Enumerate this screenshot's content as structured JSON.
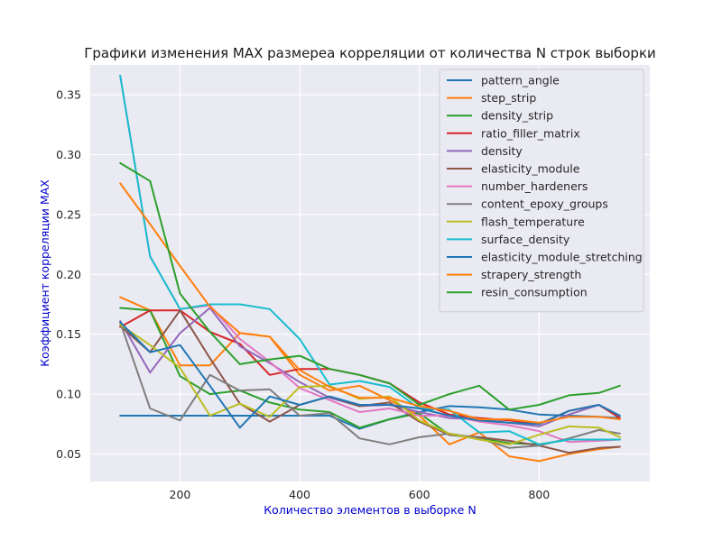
{
  "chart_data": {
    "type": "line",
    "title": "Графики изменения MAX размереа корреляции от количества  N строк выборки",
    "xlabel": "Количество элементов в выборке N",
    "ylabel": "Коэффициент корреляции MAX",
    "label_color": "#0000cc",
    "xlim": [
      50,
      985
    ],
    "ylim": [
      0.027,
      0.375
    ],
    "xticks": [
      200,
      400,
      600,
      800
    ],
    "yticks": [
      0.05,
      0.1,
      0.15,
      0.2,
      0.25,
      0.3,
      0.35
    ],
    "ytick_labels": [
      "0.05",
      "0.10",
      "0.15",
      "0.20",
      "0.25",
      "0.30",
      "0.35"
    ],
    "grid": true,
    "background": "#eaeaf2",
    "legend_position": "top-right",
    "x": [
      100,
      150,
      200,
      250,
      300,
      350,
      400,
      450,
      500,
      550,
      600,
      650,
      700,
      750,
      800,
      850,
      900,
      935
    ],
    "series": [
      {
        "name": "pattern_angle",
        "color": "#1f77b4",
        "values": [
          0.082,
          0.082,
          0.082,
          0.082,
          0.082,
          0.082,
          0.082,
          0.082,
          0.071,
          0.079,
          0.085,
          0.09,
          0.089,
          0.087,
          0.083,
          0.082,
          0.081,
          0.08
        ]
      },
      {
        "name": "step_strip",
        "color": "#ff7f0e",
        "values": [
          0.181,
          0.17,
          0.124,
          0.124,
          0.151,
          0.148,
          0.116,
          0.103,
          0.107,
          0.095,
          0.082,
          0.058,
          0.068,
          0.048,
          0.044,
          0.05,
          0.054,
          0.056
        ]
      },
      {
        "name": "density_strip",
        "color": "#2ca02c",
        "values": [
          0.172,
          0.17,
          0.115,
          0.1,
          0.103,
          0.093,
          0.087,
          0.085,
          0.072,
          0.079,
          0.084,
          0.066,
          0.063,
          0.059,
          0.058,
          0.062,
          0.062,
          0.062
        ]
      },
      {
        "name": "ratio_filler_matrix",
        "color": "#d62728",
        "values": [
          0.156,
          0.17,
          0.17,
          0.152,
          0.142,
          0.116,
          0.121,
          0.121,
          0.116,
          0.109,
          0.093,
          0.083,
          0.08,
          0.078,
          0.075,
          0.086,
          0.091,
          0.08
        ]
      },
      {
        "name": "density",
        "color": "#9467bd",
        "values": [
          0.161,
          0.118,
          0.151,
          0.172,
          0.14,
          0.126,
          0.11,
          0.097,
          0.09,
          0.091,
          0.085,
          0.08,
          0.079,
          0.076,
          0.073,
          0.083,
          0.091,
          0.082
        ]
      },
      {
        "name": "elasticity_module",
        "color": "#8c564b",
        "values": [
          0.157,
          0.135,
          0.17,
          0.13,
          0.092,
          0.077,
          0.091,
          0.098,
          0.09,
          0.093,
          0.077,
          0.066,
          0.064,
          0.061,
          0.057,
          0.051,
          0.055,
          0.056
        ]
      },
      {
        "name": "number_hardeners",
        "color": "#e377c2",
        "values": [
          0.366,
          0.215,
          0.171,
          0.174,
          0.146,
          0.127,
          0.105,
          0.095,
          0.085,
          0.088,
          0.082,
          0.082,
          0.077,
          0.074,
          0.069,
          0.06,
          0.061,
          0.062
        ]
      },
      {
        "name": "content_epoxy_groups",
        "color": "#7f7f7f",
        "values": [
          0.16,
          0.088,
          0.078,
          0.116,
          0.103,
          0.104,
          0.082,
          0.084,
          0.063,
          0.058,
          0.064,
          0.067,
          0.063,
          0.055,
          0.057,
          0.063,
          0.07,
          0.067
        ]
      },
      {
        "name": "flash_temperature",
        "color": "#bcbd22",
        "values": [
          0.158,
          0.141,
          0.122,
          0.082,
          0.092,
          0.081,
          0.106,
          0.107,
          0.096,
          0.098,
          0.078,
          0.067,
          0.062,
          0.058,
          0.066,
          0.073,
          0.072,
          0.064
        ]
      },
      {
        "name": "surface_density",
        "color": "#17becf",
        "values": [
          0.366,
          0.215,
          0.171,
          0.175,
          0.175,
          0.171,
          0.146,
          0.108,
          0.111,
          0.106,
          0.088,
          0.087,
          0.068,
          0.069,
          0.058,
          0.062,
          0.062,
          0.062
        ]
      },
      {
        "name": "elasticity_module_stretching",
        "color": "#1f77b4",
        "values": [
          0.16,
          0.135,
          0.141,
          0.107,
          0.072,
          0.098,
          0.091,
          0.098,
          0.091,
          0.091,
          0.088,
          0.082,
          0.078,
          0.076,
          0.075,
          0.086,
          0.091,
          0.082
        ]
      },
      {
        "name": "strapery_strength",
        "color": "#ff7f0e",
        "values": [
          0.276,
          0.242,
          0.207,
          0.173,
          0.151,
          0.148,
          0.12,
          0.106,
          0.097,
          0.097,
          0.09,
          0.086,
          0.079,
          0.079,
          0.076,
          0.081,
          0.081,
          0.079
        ]
      },
      {
        "name": "resin_consumption",
        "color": "#2ca02c",
        "values": [
          0.293,
          0.278,
          0.184,
          0.152,
          0.125,
          0.129,
          0.132,
          0.121,
          0.116,
          0.109,
          0.091,
          0.1,
          0.107,
          0.087,
          0.091,
          0.099,
          0.101,
          0.107
        ]
      }
    ]
  }
}
